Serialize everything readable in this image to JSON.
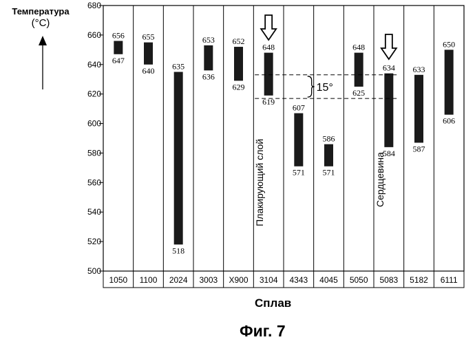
{
  "chart_data": {
    "type": "range-bar",
    "title": "",
    "ylabel": "Температура",
    "yunit": "(°C)",
    "xlabel": "Сплав",
    "caption": "Фиг. 7",
    "ylim": [
      500,
      680
    ],
    "yticks": [
      500,
      520,
      540,
      560,
      580,
      600,
      620,
      640,
      660,
      680
    ],
    "categories": [
      "1050",
      "1100",
      "2024",
      "3003",
      "X900",
      "3104",
      "4343",
      "4045",
      "5050",
      "5083",
      "5182",
      "6111"
    ],
    "ranges": [
      {
        "low": 647,
        "high": 656
      },
      {
        "low": 640,
        "high": 655
      },
      {
        "low": 518,
        "high": 635
      },
      {
        "low": 636,
        "high": 653
      },
      {
        "low": 629,
        "high": 652
      },
      {
        "low": 619,
        "high": 648
      },
      {
        "low": 571,
        "high": 607
      },
      {
        "low": 571,
        "high": 586
      },
      {
        "low": 625,
        "high": 648
      },
      {
        "low": 584,
        "high": 634
      },
      {
        "low": 587,
        "high": 633
      },
      {
        "low": 606,
        "high": 650
      }
    ],
    "annotations": {
      "clad_label": "Плакирующий слой",
      "clad_category": "3104",
      "core_label": "Сердцевина",
      "core_category": "5083",
      "gap_label": "15°",
      "gap_lines": [
        633,
        617
      ]
    }
  }
}
